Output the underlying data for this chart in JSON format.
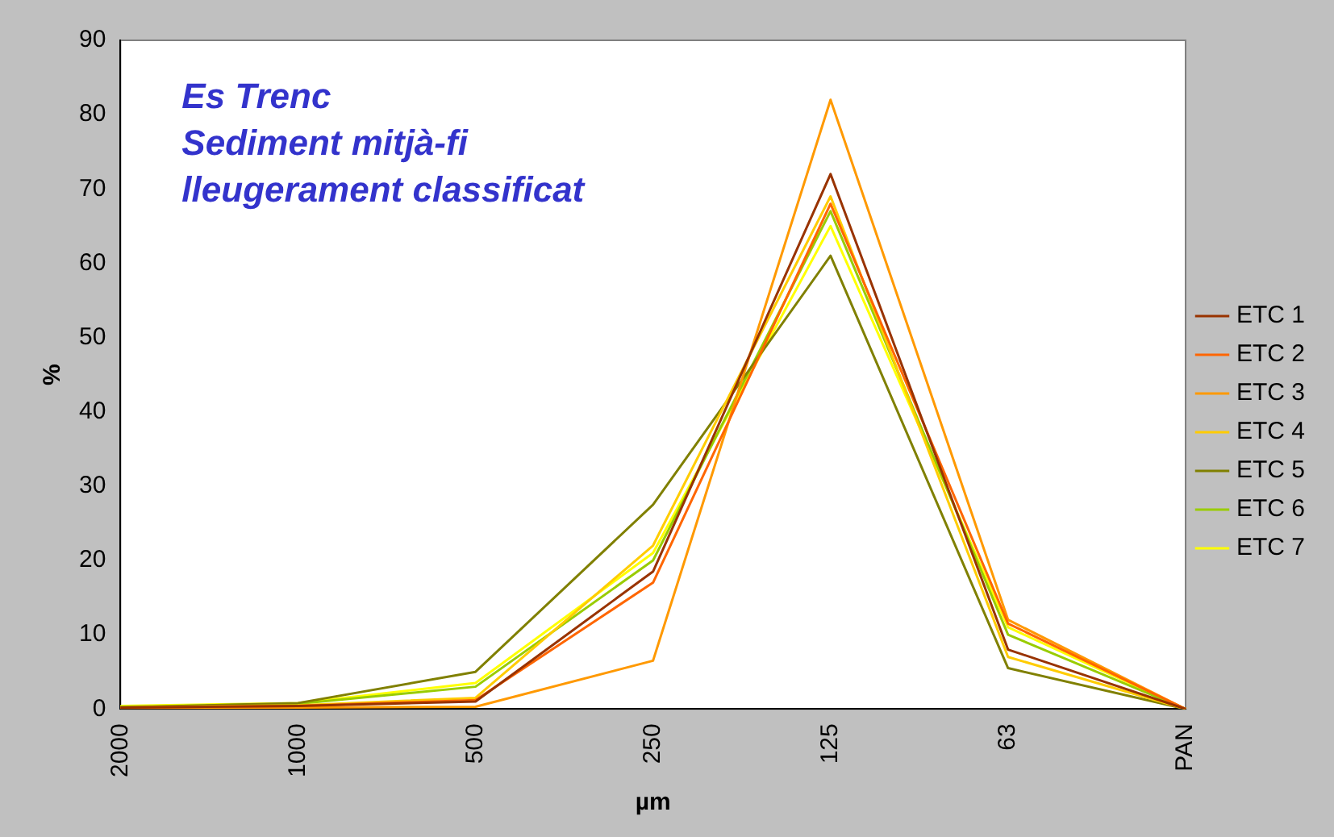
{
  "chart_data": {
    "type": "line",
    "title": "Es Trenc\nSediment mitjà-fi\nlleugerament classificat",
    "xlabel": "µm",
    "ylabel": "%",
    "categories": [
      "2000",
      "1000",
      "500",
      "250",
      "125",
      "63",
      "PAN"
    ],
    "series": [
      {
        "name": "ETC 1",
        "color": "#993300",
        "values": [
          0.2,
          0.4,
          1,
          18.5,
          72,
          8,
          0
        ]
      },
      {
        "name": "ETC 2",
        "color": "#ff6600",
        "values": [
          0.2,
          0.4,
          1.2,
          17,
          68,
          11.5,
          0
        ]
      },
      {
        "name": "ETC 3",
        "color": "#ff9900",
        "values": [
          0.1,
          0.2,
          0.3,
          6.5,
          82,
          12,
          0
        ]
      },
      {
        "name": "ETC 4",
        "color": "#ffcc00",
        "values": [
          0.2,
          0.5,
          1.5,
          22,
          69,
          7,
          0
        ]
      },
      {
        "name": "ETC 5",
        "color": "#808000",
        "values": [
          0.2,
          0.8,
          5,
          27.5,
          61,
          5.5,
          0
        ]
      },
      {
        "name": "ETC 6",
        "color": "#99cc00",
        "values": [
          0.3,
          0.7,
          3,
          20,
          67,
          10,
          0
        ]
      },
      {
        "name": "ETC 7",
        "color": "#ffff00",
        "values": [
          0.4,
          0.8,
          3.5,
          21,
          65,
          11,
          0
        ]
      }
    ],
    "ylim": [
      0,
      90
    ],
    "yticks": [
      0,
      10,
      20,
      30,
      40,
      50,
      60,
      70,
      80,
      90
    ],
    "legend": "right",
    "marker": "none",
    "line_style": "solid"
  }
}
